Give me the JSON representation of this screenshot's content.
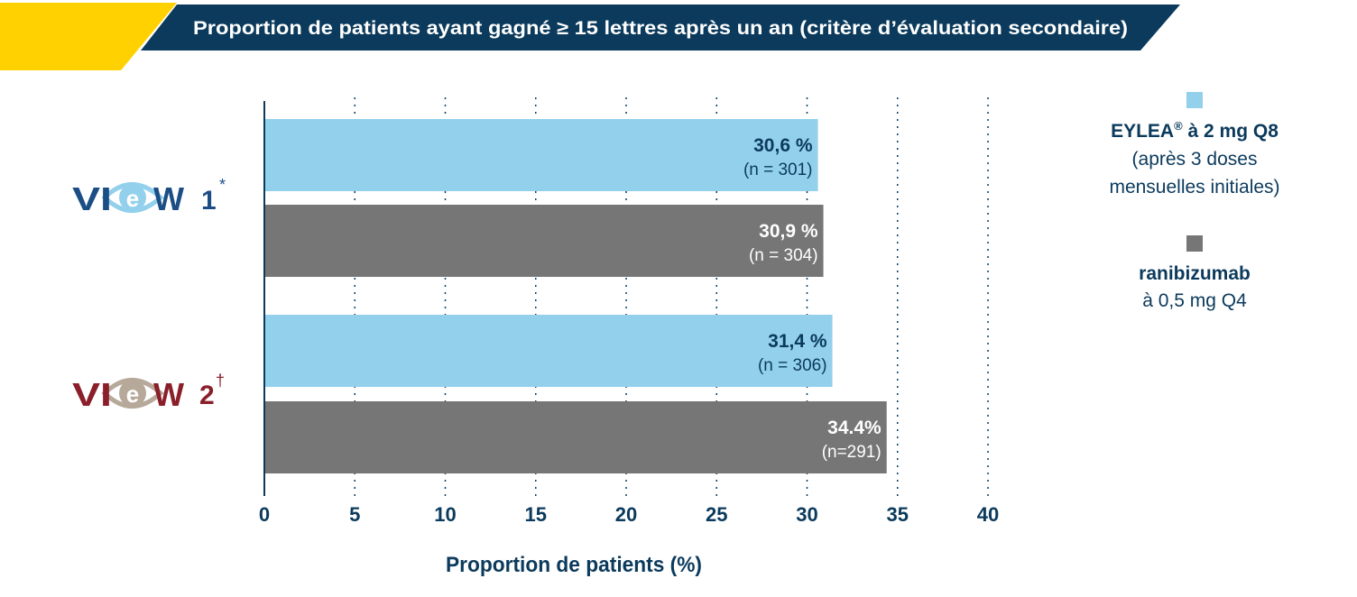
{
  "header": {
    "title": "Proportion de patients ayant gagné ≥ 15 lettres après un an (critère d’évaluation secondaire)"
  },
  "colors": {
    "accent_yellow": "#FFD100",
    "navy": "#0B3A5C",
    "eylea_blue": "#92D0EC",
    "ranibizumab_gray": "#767676",
    "view1_blue": "#1C4E86",
    "view2_red": "#8A1F2A",
    "view2_beige": "#B7A99A"
  },
  "legend": {
    "eylea": {
      "name": "EYLEA",
      "mark": "®",
      "dose": " à 2 mg Q8",
      "line2": "(après 3 doses",
      "line3": "mensuelles initiales)"
    },
    "ranibizumab": {
      "name": "ranibizumab",
      "line2": "à 0,5 mg Q4"
    }
  },
  "chart_data": {
    "type": "bar",
    "orientation": "horizontal",
    "title": "Proportion de patients ayant gagné ≥ 15 lettres après un an (critère d’évaluation secondaire)",
    "xlabel": "Proportion de patients (%)",
    "xlim": [
      0,
      40
    ],
    "xticks": [
      "0",
      "5",
      "10",
      "15",
      "20",
      "25",
      "30",
      "35",
      "40"
    ],
    "grid": "vertical dotted",
    "legend_position": "right",
    "groups": [
      {
        "logo": "VIEW 1",
        "word": "VI",
        "word_end": "W",
        "number": "1",
        "mark": "*",
        "logo_color": "#1C4E86"
      },
      {
        "logo": "VIEW 2",
        "word": "VI",
        "word_end": "W",
        "number": "2",
        "mark": "†",
        "logo_color": "#8A1F2A"
      }
    ],
    "series": [
      {
        "name": "EYLEA® à 2 mg Q8",
        "color": "#92D0EC",
        "values": [
          30.6,
          31.4
        ],
        "labels": [
          "30,6 %",
          "31,4 %"
        ],
        "n_labels": [
          "(n = 301)",
          "(n = 306)"
        ]
      },
      {
        "name": "ranibizumab à 0,5 mg Q4",
        "color": "#767676",
        "values": [
          30.9,
          34.4
        ],
        "labels": [
          "30,9 %",
          "34.4%"
        ],
        "n_labels": [
          "(n = 304)",
          "(n=291)"
        ]
      }
    ]
  }
}
